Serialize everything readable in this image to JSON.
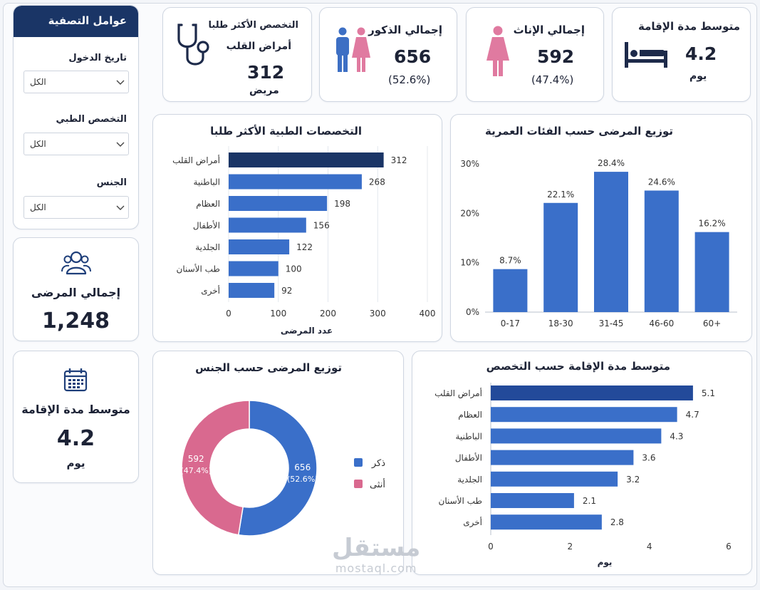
{
  "filters": {
    "title": "عوامل التصفية",
    "fields": [
      {
        "label": "تاريخ الدخول",
        "value": "الكل"
      },
      {
        "label": "التخصص الطبي",
        "value": "الكل"
      },
      {
        "label": "الجنس",
        "value": "الكل"
      }
    ]
  },
  "side": {
    "patients_title": "إجمالي المرضى",
    "patients_value": "1,248",
    "stay_title": "متوسط مدة الإقامة",
    "stay_value": "4.2",
    "stay_unit": "يوم"
  },
  "kpis": {
    "top_specialty": {
      "title": "التخصص الأكثر طلبا",
      "name": "أمراض القلب",
      "value": "312",
      "unit": "مريض"
    },
    "males": {
      "title": "إجمالي الذكور",
      "value": "656",
      "pct": "(52.6%)"
    },
    "females": {
      "title": "إجمالي الإناث",
      "value": "592",
      "pct": "(47.4%)"
    },
    "avg_stay": {
      "title": "متوسط مدة الإقامة",
      "value": "4.2",
      "unit": "يوم"
    }
  },
  "colors": {
    "navy": "#1a3566",
    "blue": "#3a6fc9",
    "blue_dark": "#234a9a",
    "pink": "#d9698f",
    "male_icon": "#3d6fc4",
    "female_icon": "#e07aa0"
  },
  "icons": [
    "stethoscope-icon",
    "male-female-icon",
    "female-icon",
    "bed-icon",
    "users-icon",
    "calendar-icon",
    "chevron-down-icon"
  ],
  "chart_data": [
    {
      "type": "bar",
      "orientation": "horizontal",
      "title": "التخصصات الطبية الأكثر طلبا",
      "xlabel": "عدد المرضى",
      "categories": [
        "أمراض القلب",
        "الباطنية",
        "العظام",
        "الأطفال",
        "الجلدية",
        "طب الأسنان",
        "أخرى"
      ],
      "values": [
        312,
        268,
        198,
        156,
        122,
        100,
        92
      ],
      "xlim": [
        0,
        400
      ],
      "xticks": [
        "0",
        "100",
        "200",
        "300",
        "400"
      ],
      "data_labels": [
        "312",
        "268",
        "198",
        "156",
        "122",
        "100",
        "92"
      ]
    },
    {
      "type": "bar",
      "title": "توزيع المرضى حسب الفئات العمرية",
      "categories": [
        "0-17",
        "18-30",
        "31-45",
        "46-60",
        "60+"
      ],
      "values": [
        8.7,
        22.1,
        28.4,
        24.6,
        16.2
      ],
      "ylim": [
        0,
        30
      ],
      "yticks": [
        "0%",
        "10%",
        "20%",
        "30%"
      ],
      "data_labels": [
        "8.7%",
        "22.1%",
        "28.4%",
        "24.6%",
        "16.2%"
      ]
    },
    {
      "type": "pie",
      "donut": true,
      "title": "توزيع المرضى حسب الجنس",
      "labels": [
        "ذكر",
        "أنثى"
      ],
      "values": [
        656,
        592
      ],
      "percents": [
        52.6,
        47.4
      ],
      "value_labels": [
        "656",
        "592"
      ],
      "pct_labels": [
        "(52.6%)",
        "(47.4%)"
      ],
      "legend_position": "right"
    },
    {
      "type": "bar",
      "orientation": "horizontal",
      "title": "متوسط مدة الإقامة حسب التخصص",
      "xlabel": "يوم",
      "categories": [
        "أمراض القلب",
        "العظام",
        "الباطنية",
        "الأطفال",
        "الجلدية",
        "طب الأسنان",
        "أخرى"
      ],
      "values": [
        5.1,
        4.7,
        4.3,
        3.6,
        3.2,
        2.1,
        2.8
      ],
      "xlim": [
        0,
        6
      ],
      "xticks": [
        "0",
        "2",
        "4",
        "6"
      ],
      "data_labels": [
        "5.1",
        "4.7",
        "4.3",
        "3.6",
        "3.2",
        "2.1",
        "2.8"
      ]
    }
  ],
  "watermark": {
    "arabic": "مستقل",
    "latin": "mostaql.com"
  }
}
